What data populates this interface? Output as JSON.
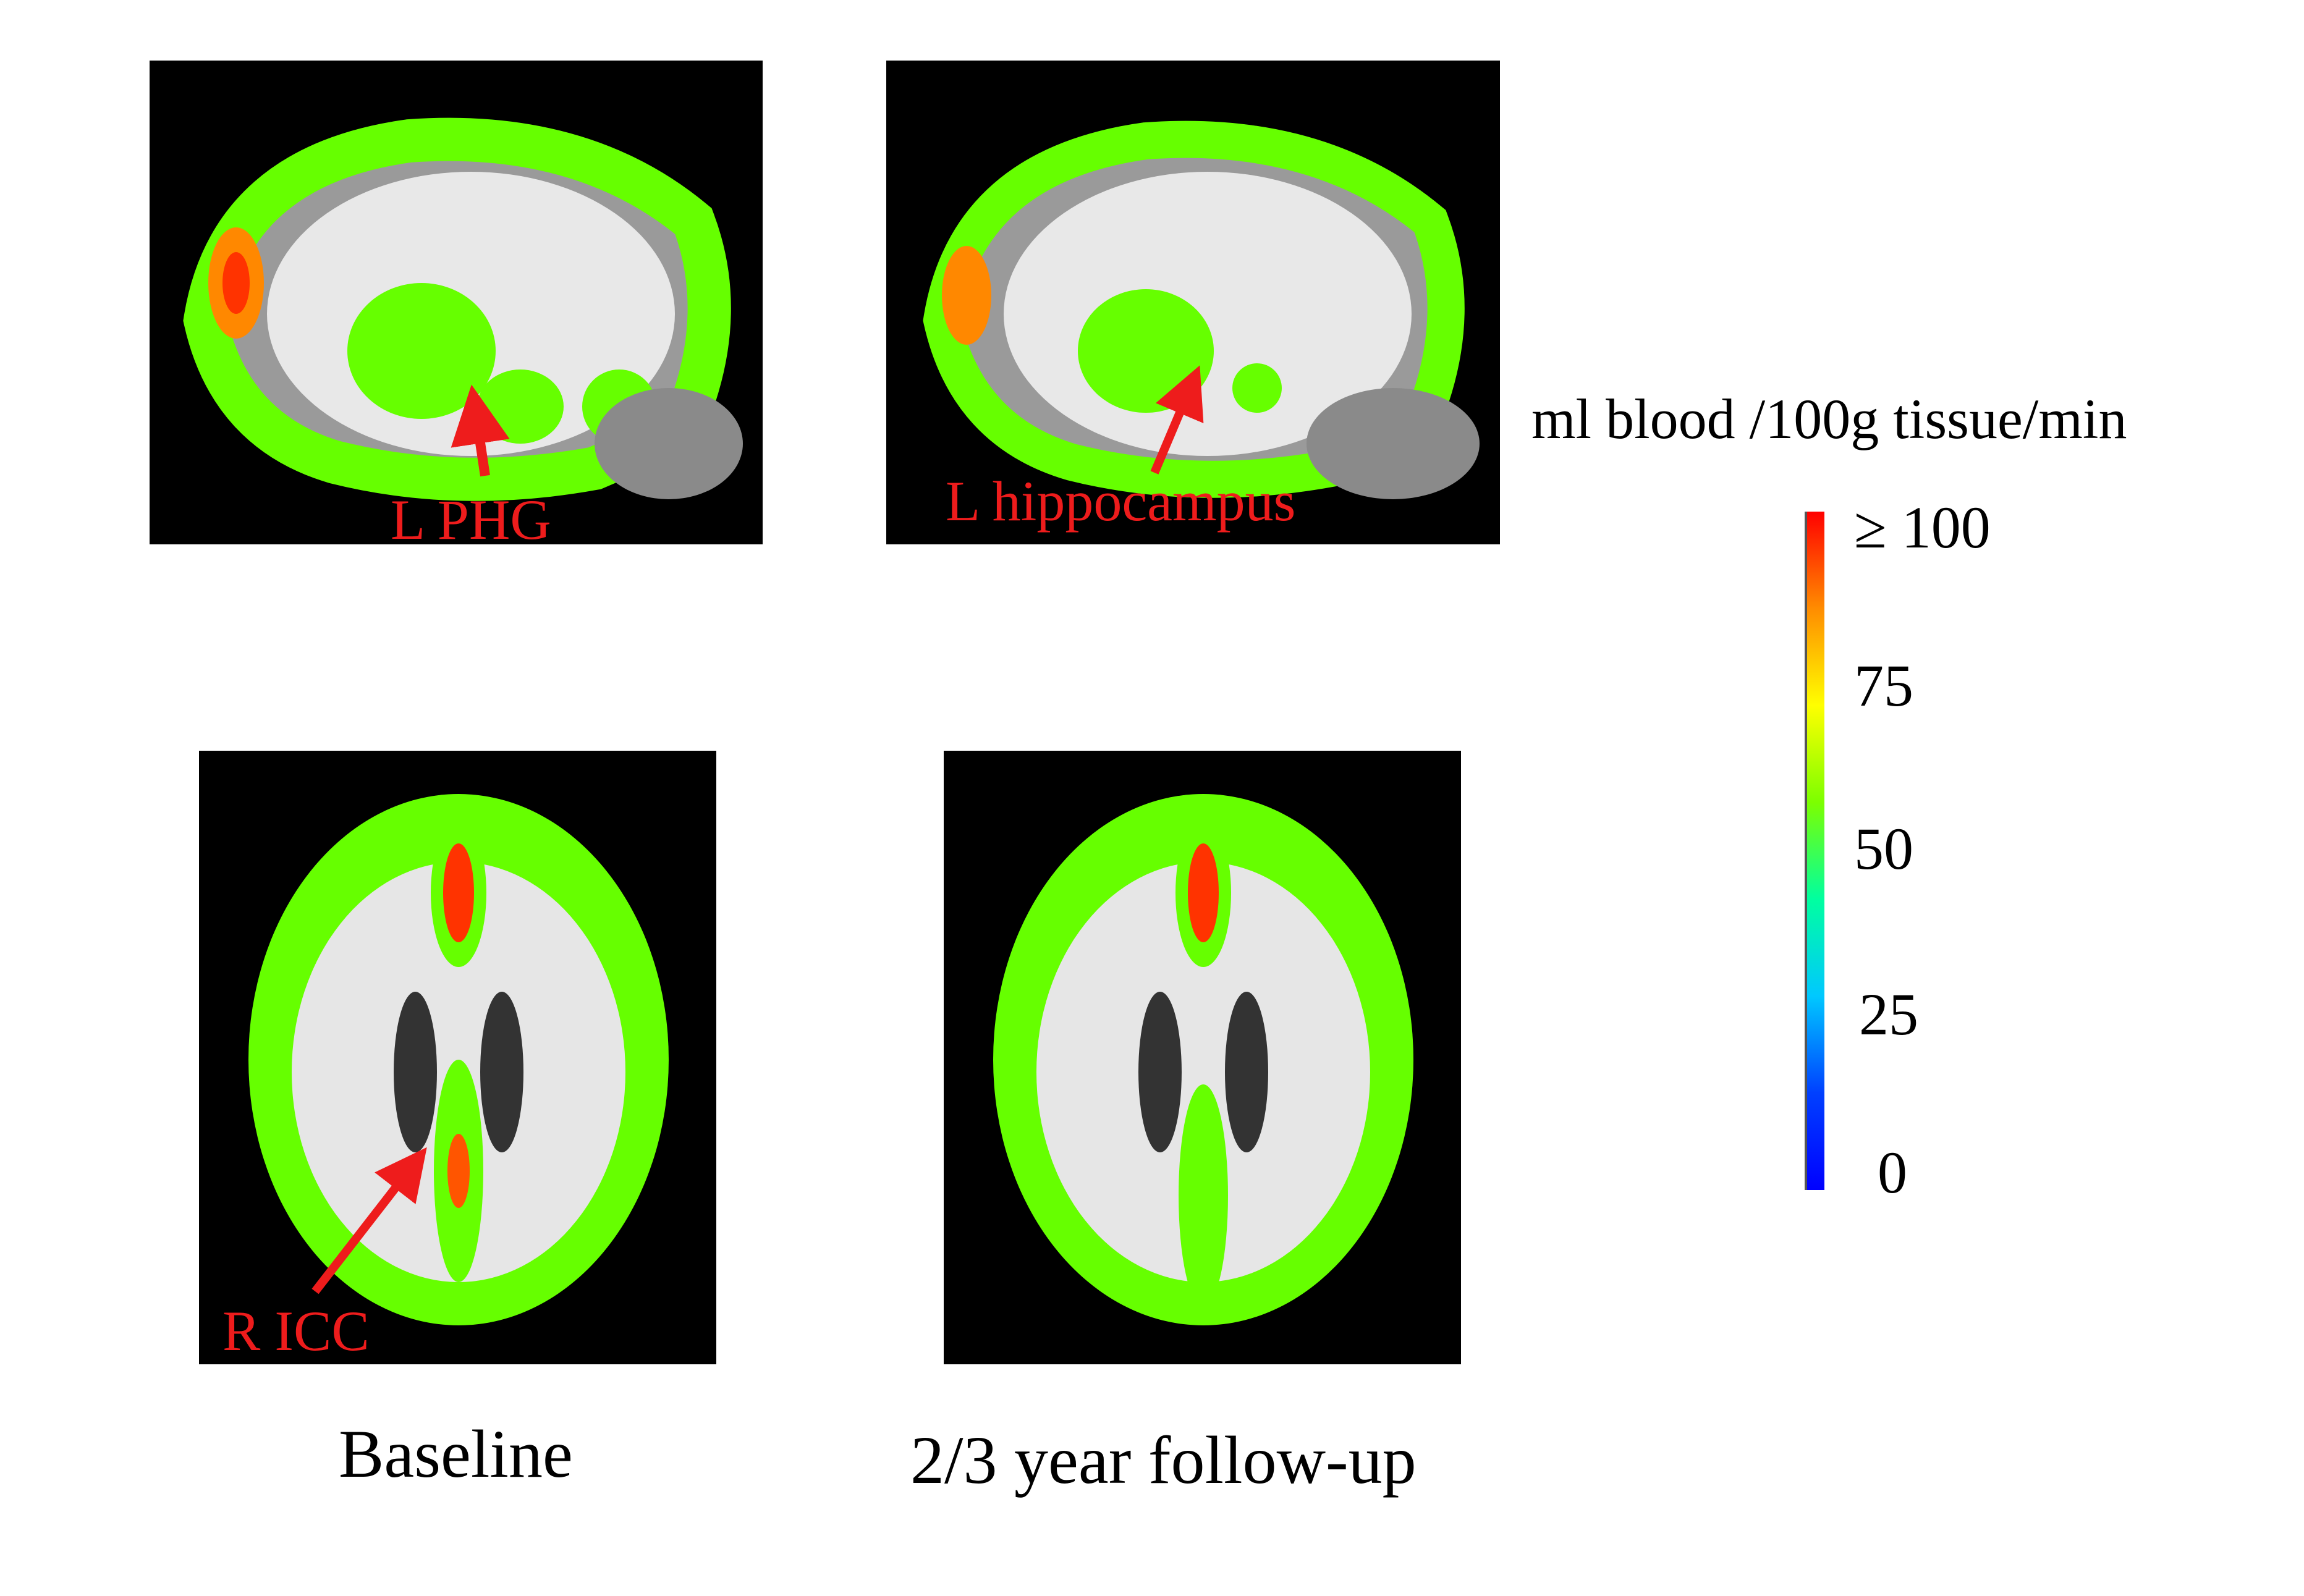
{
  "annotations": {
    "l_phg": "L PHG",
    "l_hippocampus": "L hippocampus",
    "r_icc": "R ICC"
  },
  "captions": {
    "baseline": "Baseline",
    "followup": "2/3 year follow-up"
  },
  "colorbar": {
    "title": "ml blood /100g tissue/min",
    "ticks": [
      "≥ 100",
      "75",
      "50",
      "25",
      "0"
    ],
    "colors": [
      "#ff0000",
      "#ff8c00",
      "#ffff00",
      "#7cff00",
      "#00ffa0",
      "#00c8ff",
      "#0040ff",
      "#0000ff"
    ]
  },
  "overlay_colors": {
    "perfusion_low": "#66ff00",
    "perfusion_mid": "#c8ff00",
    "perfusion_high": "#ff3300",
    "annotation": "#ee1c1c"
  }
}
